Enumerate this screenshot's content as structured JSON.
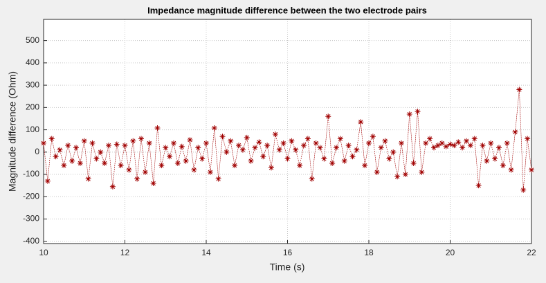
{
  "chart_data": {
    "type": "line",
    "marker": "*",
    "title": "Impedance magnitude difference between the two electrode pairs",
    "x_label": "Time (s)",
    "y_label": "Magnitude difference (Ohm)",
    "xlim": [
      10,
      22
    ],
    "xticks": [
      10,
      12,
      14,
      16,
      18,
      20,
      22
    ],
    "ylim": [
      -410,
      595
    ],
    "yticks": [
      -400,
      -300,
      -200,
      -100,
      0,
      100,
      200,
      300,
      400,
      500
    ],
    "grid": true,
    "series": [
      {
        "color": "#a00000",
        "x": [
          10.0,
          10.1,
          10.2,
          10.3,
          10.4,
          10.5,
          10.6,
          10.7,
          10.8,
          10.9,
          11.0,
          11.1,
          11.2,
          11.3,
          11.4,
          11.5,
          11.6,
          11.7,
          11.8,
          11.9,
          12.0,
          12.1,
          12.2,
          12.3,
          12.4,
          12.5,
          12.6,
          12.7,
          12.8,
          12.9,
          13.0,
          13.1,
          13.2,
          13.3,
          13.4,
          13.5,
          13.6,
          13.7,
          13.8,
          13.9,
          14.0,
          14.1,
          14.2,
          14.3,
          14.4,
          14.5,
          14.6,
          14.7,
          14.8,
          14.9,
          15.0,
          15.1,
          15.2,
          15.3,
          15.4,
          15.5,
          15.6,
          15.7,
          15.8,
          15.9,
          16.0,
          16.1,
          16.2,
          16.3,
          16.4,
          16.5,
          16.6,
          16.7,
          16.8,
          16.9,
          17.0,
          17.1,
          17.2,
          17.3,
          17.4,
          17.5,
          17.6,
          17.7,
          17.8,
          17.9,
          18.0,
          18.1,
          18.2,
          18.3,
          18.4,
          18.5,
          18.6,
          18.7,
          18.8,
          18.9,
          19.0,
          19.1,
          19.2,
          19.3,
          19.4,
          19.5,
          19.6,
          19.7,
          19.8,
          19.9,
          20.0,
          20.1,
          20.2,
          20.3,
          20.4,
          20.5,
          20.6,
          20.7,
          20.8,
          20.9,
          21.0,
          21.1,
          21.2,
          21.3,
          21.4,
          21.5,
          21.6,
          21.7,
          21.8,
          21.9,
          22.0
        ],
        "values": [
          40,
          -130,
          60,
          -20,
          10,
          -60,
          30,
          -40,
          20,
          -50,
          50,
          -120,
          40,
          -30,
          0,
          -50,
          30,
          -155,
          35,
          -60,
          30,
          -80,
          50,
          -120,
          60,
          -90,
          40,
          -140,
          108,
          -60,
          20,
          -20,
          40,
          -50,
          25,
          -40,
          55,
          -80,
          20,
          -30,
          40,
          -90,
          108,
          -120,
          70,
          0,
          50,
          -60,
          30,
          10,
          65,
          -40,
          20,
          45,
          -20,
          30,
          -70,
          80,
          10,
          40,
          -30,
          50,
          10,
          -60,
          30,
          60,
          -120,
          40,
          20,
          -30,
          160,
          -50,
          20,
          60,
          -40,
          30,
          -20,
          10,
          135,
          -60,
          40,
          70,
          -90,
          20,
          50,
          -30,
          0,
          -110,
          40,
          -100,
          170,
          -50,
          182,
          -90,
          40,
          60,
          20,
          30,
          40,
          25,
          35,
          30,
          45,
          20,
          50,
          30,
          60,
          -150,
          30,
          -40,
          40,
          -30,
          20,
          -60,
          40,
          -80,
          90,
          280,
          -170,
          60,
          -80
        ]
      }
    ]
  }
}
